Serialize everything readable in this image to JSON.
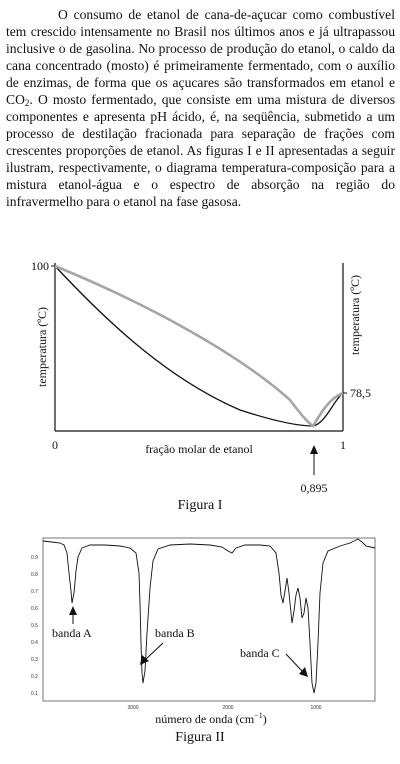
{
  "paragraph": {
    "part1": "O consumo de etanol de cana-de-açucar como combustível tem crescido intensamente no Brasil nos últimos anos e já ultrapassou inclusive o de gasolina. No processo de produção do etanol, o caldo da cana concentrado (mosto) é primeiramente fermentado, com o auxílio de enzimas, de forma que os açucares são transformados em etanol e CO",
    "sub": "2",
    "part2": ". O mosto fermentado, que consiste em uma mistura de diversos componentes e apresenta pH ácido, é, na seqüência, submetido a um processo de destilação fracionada para separação de frações com crescentes proporções de etanol. As figuras I e II apresentadas a seguir ilustram, respectivamente, o diagrama temperatura-composição para a mistura etanol-água e o espectro de absorção na região do infravermelho para o etanol na fase gasosa."
  },
  "figure1": {
    "caption": "Figura I",
    "y_label_left": "temperatura (ºC)",
    "y_label_right": "temperatura (ºC)",
    "x_label": "fração molar de etanol",
    "tick_100": "100",
    "tick_78": "78,5",
    "tick_x0": "0",
    "tick_x1": "1",
    "azeotrope_label": "0,895",
    "curve_color": "#a6a6a6"
  },
  "figure2": {
    "caption": "Figura II",
    "x_label": "número de onda (cm",
    "x_label_sup": "−1",
    "x_label_end": ")",
    "band_a": "banda A",
    "band_b": "banda B",
    "band_c": "banda C",
    "x_ticks": [
      "3000",
      "2000",
      "1000"
    ],
    "y_ticks": [
      "0.9",
      "0.8",
      "0.7",
      "0.6",
      "0.5",
      "0.4",
      "0.3",
      "0.2",
      "0.1"
    ]
  }
}
